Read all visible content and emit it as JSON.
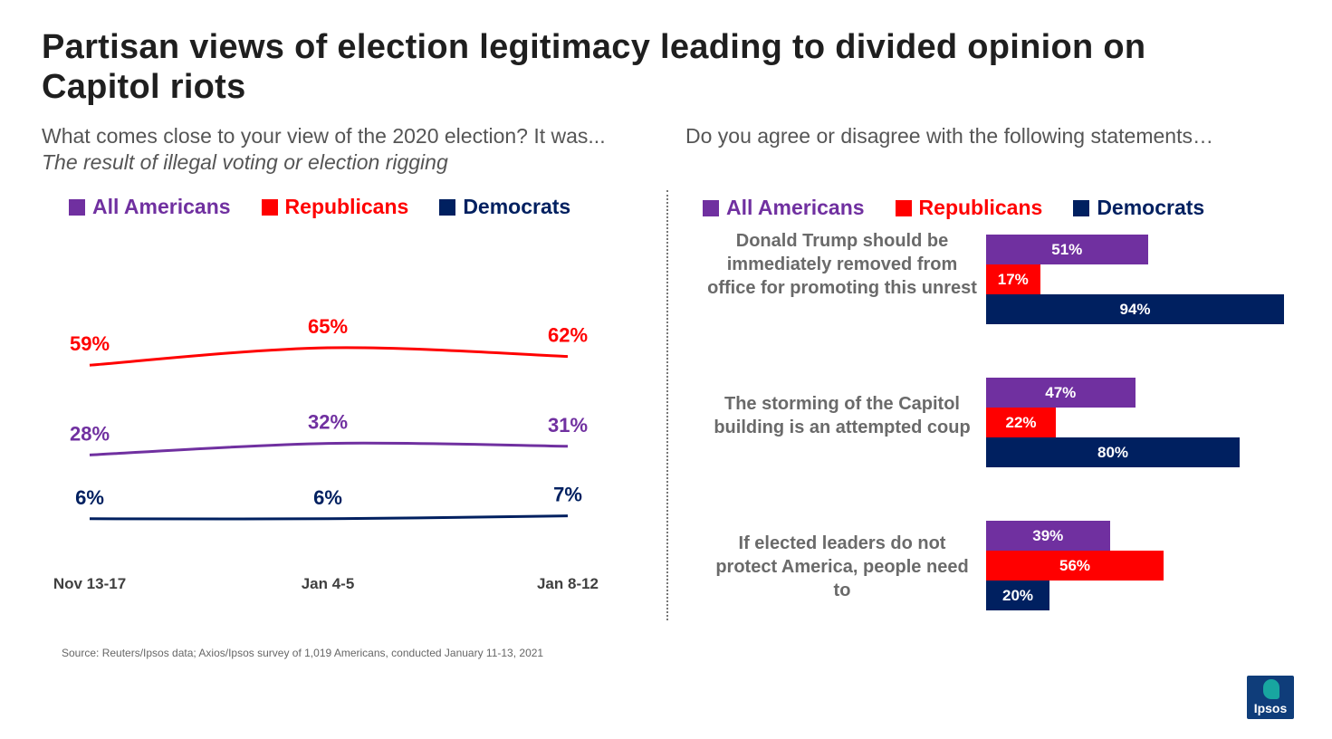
{
  "title": "Partisan views of election legitimacy leading to divided opinion on Capitol riots",
  "left_question": "What comes close to your view of the 2020 election? It was...",
  "left_subquestion": "The result of illegal voting or election rigging",
  "right_question": "Do you agree or disagree with the following statements…",
  "legend": [
    {
      "label": "All Americans",
      "color": "#7030A0"
    },
    {
      "label": "Republicans",
      "color": "#FF0000"
    },
    {
      "label": "Democrats",
      "color": "#002060"
    }
  ],
  "chart_data": [
    {
      "type": "line",
      "x": [
        "Nov 13-17",
        "Jan 4-5",
        "Jan 8-12"
      ],
      "series": [
        {
          "name": "Republicans",
          "color": "#FF0000",
          "values": [
            59,
            65,
            62
          ],
          "labels": [
            "59%",
            "65%",
            "62%"
          ]
        },
        {
          "name": "All Americans",
          "color": "#7030A0",
          "values": [
            28,
            32,
            31
          ],
          "labels": [
            "28%",
            "32%",
            "31%"
          ]
        },
        {
          "name": "Democrats",
          "color": "#002060",
          "values": [
            6,
            6,
            7
          ],
          "labels": [
            "6%",
            "6%",
            "7%"
          ]
        }
      ]
    },
    {
      "type": "bar",
      "orientation": "horizontal",
      "xlim": [
        0,
        100
      ],
      "categories": [
        "Donald Trump should be immediately removed from office for promoting this unrest",
        "The storming of the Capitol building is an attempted coup",
        "If elected leaders do not protect America, people need to"
      ],
      "series": [
        {
          "name": "All Americans",
          "color": "#7030A0",
          "values": [
            51,
            47,
            39
          ],
          "labels": [
            "51%",
            "47%",
            "39%"
          ]
        },
        {
          "name": "Republicans",
          "color": "#FF0000",
          "values": [
            17,
            22,
            56
          ],
          "labels": [
            "17%",
            "22%",
            "56%"
          ]
        },
        {
          "name": "Democrats",
          "color": "#002060",
          "values": [
            94,
            80,
            20
          ],
          "labels": [
            "94%",
            "80%",
            "20%"
          ]
        }
      ]
    }
  ],
  "source": "Source: Reuters/Ipsos data; Axios/Ipsos survey of 1,019 Americans, conducted January 11-13, 2021",
  "logo_text": "Ipsos"
}
